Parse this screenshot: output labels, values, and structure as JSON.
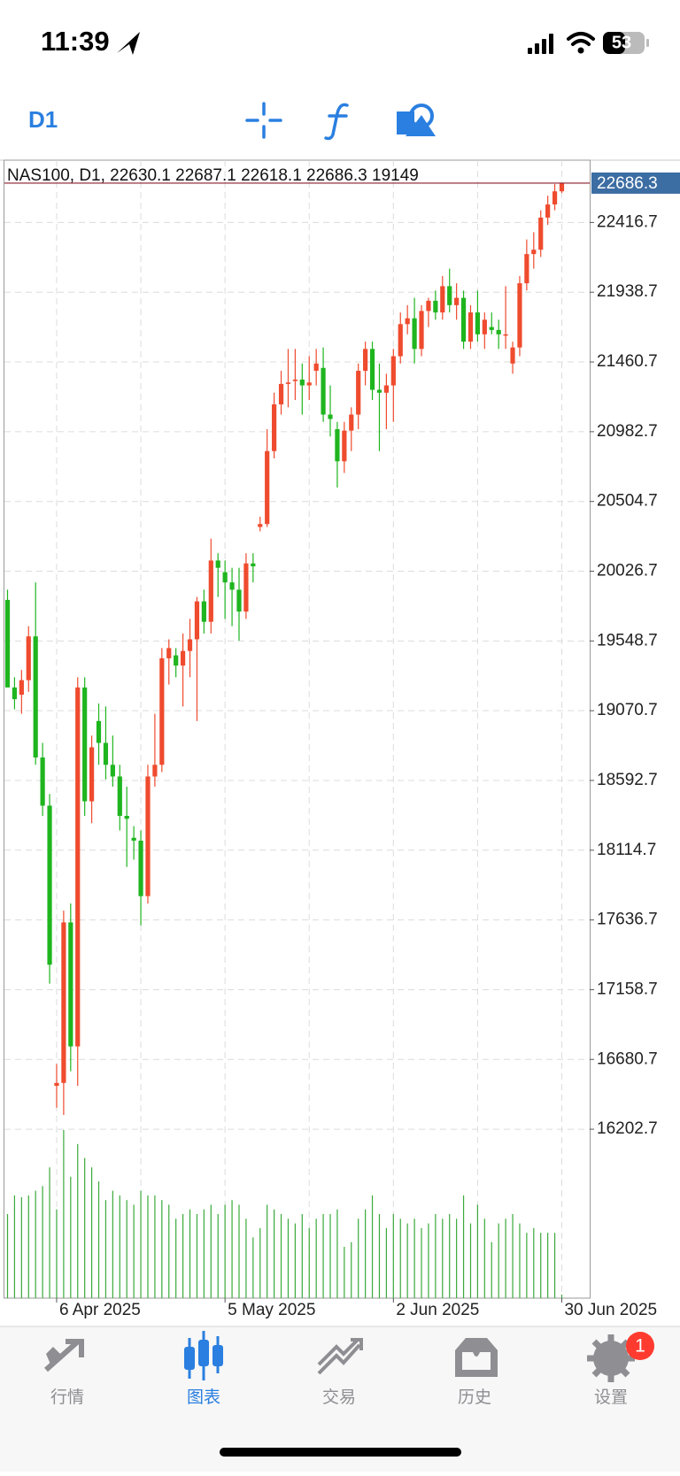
{
  "status_bar": {
    "time": "11:39",
    "battery": "53"
  },
  "toolbar": {
    "timeframe": "D1"
  },
  "chart_data": {
    "type": "candlestick",
    "title": "NAS100, D1, 22630.1 22687.1 22618.1 22686.3 19149",
    "categories": [
      null,
      null,
      null,
      null,
      null,
      null,
      null,
      "6 Apr 2025",
      null,
      null,
      null,
      null,
      null,
      null,
      null,
      null,
      null,
      null,
      null,
      null,
      null,
      null,
      null,
      null,
      null,
      null,
      null,
      null,
      null,
      null,
      null,
      "5 May 2025",
      null,
      null,
      null,
      null,
      null,
      null,
      null,
      null,
      null,
      null,
      null,
      null,
      null,
      null,
      null,
      null,
      null,
      null,
      null,
      null,
      null,
      null,
      null,
      "2 Jun 2025",
      null,
      null,
      null,
      null,
      null,
      null,
      null,
      null,
      null,
      null,
      null,
      null,
      null,
      null,
      null,
      null,
      null,
      null,
      null,
      null,
      null,
      null,
      null,
      "30 Jun 2025"
    ],
    "open": [
      19830,
      19230,
      19180,
      19280,
      19580,
      18750,
      18420,
      16500,
      16520,
      17620,
      16770,
      19230,
      18450,
      19000,
      18850,
      18700,
      18620,
      18350,
      18200,
      18180,
      17800,
      18620,
      18700,
      19430,
      19450,
      19380,
      19480,
      19560,
      19820,
      19680,
      20100,
      20020,
      19950,
      19900,
      19750,
      20080,
      20330,
      20350,
      20850,
      21170,
      21310,
      21330,
      21340,
      21300,
      21400,
      21420,
      21100,
      21000,
      20780,
      20990,
      21100,
      21400,
      21550,
      21270,
      21250,
      21300,
      21500,
      21720,
      21760,
      21550,
      21810,
      21880,
      21800,
      21980,
      21850,
      21900,
      21600,
      21800,
      21650,
      21700,
      21680,
      21650,
      21450,
      21560,
      22000,
      22200,
      22230,
      22450,
      22540,
      22630.1
    ],
    "high": [
      19900,
      19300,
      19350,
      19650,
      19950,
      18850,
      18500,
      16650,
      17700,
      17750,
      19300,
      19300,
      18900,
      19120,
      19100,
      18900,
      18700,
      18550,
      18280,
      18250,
      18700,
      19050,
      19500,
      19560,
      19500,
      19600,
      19700,
      19850,
      19900,
      20250,
      20150,
      20100,
      20050,
      20050,
      20150,
      20150,
      20400,
      21000,
      21250,
      21400,
      21550,
      21550,
      21450,
      21500,
      21550,
      21560,
      21300,
      21050,
      21050,
      21150,
      21450,
      21600,
      21600,
      21450,
      21380,
      21550,
      21800,
      21850,
      21900,
      21850,
      21900,
      21950,
      22050,
      22100,
      22000,
      21950,
      21850,
      21950,
      21800,
      21800,
      21750,
      21980,
      21600,
      22050,
      22300,
      22350,
      22500,
      22600,
      22680,
      22687.1
    ],
    "low": [
      19300,
      19080,
      19050,
      19200,
      18700,
      18350,
      17200,
      16350,
      16300,
      16600,
      16500,
      18350,
      18300,
      18700,
      18600,
      18550,
      18250,
      18000,
      18050,
      17600,
      17750,
      18550,
      18650,
      19250,
      19300,
      19100,
      19300,
      19000,
      19600,
      19600,
      19850,
      19700,
      19650,
      19550,
      19700,
      19950,
      20300,
      20330,
      20800,
      21100,
      21150,
      21200,
      21100,
      21200,
      21300,
      21050,
      20950,
      20600,
      20700,
      20850,
      21000,
      21300,
      21200,
      20850,
      21000,
      21050,
      21450,
      21650,
      21450,
      21500,
      21700,
      21750,
      21750,
      21800,
      21750,
      21550,
      21550,
      21600,
      21550,
      21650,
      21550,
      21550,
      21380,
      21500,
      21950,
      22100,
      22180,
      22400,
      22500,
      22618.1
    ],
    "close": [
      19230,
      19150,
      19280,
      19580,
      18750,
      18420,
      17330,
      16520,
      17620,
      16770,
      19230,
      18450,
      18820,
      18850,
      18700,
      18620,
      18350,
      18330,
      18180,
      17800,
      18620,
      18700,
      19430,
      19500,
      19380,
      19480,
      19560,
      19820,
      19680,
      20100,
      20050,
      19950,
      19900,
      19750,
      20080,
      20060,
      20350,
      20850,
      21170,
      21310,
      21320,
      21340,
      21300,
      21320,
      21450,
      21100,
      21070,
      20780,
      20990,
      21100,
      21400,
      21550,
      21270,
      21250,
      21300,
      21500,
      21720,
      21760,
      21550,
      21810,
      21880,
      21800,
      21980,
      21850,
      21900,
      21600,
      21800,
      21650,
      21750,
      21680,
      21650,
      21650,
      21560,
      22000,
      22200,
      22230,
      22450,
      22540,
      22630,
      22686.3
    ],
    "volumes": [
      450000,
      550000,
      540000,
      550000,
      575000,
      600000,
      700000,
      475000,
      900000,
      650000,
      825000,
      750000,
      700000,
      625000,
      525000,
      575000,
      550000,
      525000,
      500000,
      575000,
      550000,
      550000,
      525000,
      500000,
      425000,
      450000,
      475000,
      450000,
      475000,
      500000,
      450000,
      500000,
      525000,
      500000,
      425000,
      325000,
      375000,
      500000,
      475000,
      450000,
      425000,
      400000,
      450000,
      375000,
      425000,
      450000,
      450000,
      475000,
      275000,
      300000,
      425000,
      475000,
      550000,
      450000,
      375000,
      450000,
      425000,
      400000,
      425000,
      375000,
      400000,
      450000,
      425000,
      450000,
      425000,
      550000,
      400000,
      500000,
      425000,
      300000,
      400000,
      425000,
      450000,
      400000,
      350000,
      375000,
      350000,
      350000,
      350000,
      19149
    ],
    "ylim": [
      15045,
      22843.6
    ],
    "yticks": [
      16202.7,
      16680.7,
      17158.7,
      17636.7,
      18114.7,
      18592.7,
      19070.7,
      19548.7,
      20026.7,
      20504.7,
      20982.7,
      21460.7,
      21938.7,
      22416.7
    ],
    "grid": true,
    "up_color": "#ef4b2e",
    "down_color": "#1fb51f",
    "volume_color": "#3aaa3a",
    "last_price_color": "#3c6da3"
  },
  "tab_bar": {
    "tabs": [
      "行情",
      "图表",
      "交易",
      "历史",
      "设置"
    ],
    "active": 1,
    "badge": "1"
  }
}
